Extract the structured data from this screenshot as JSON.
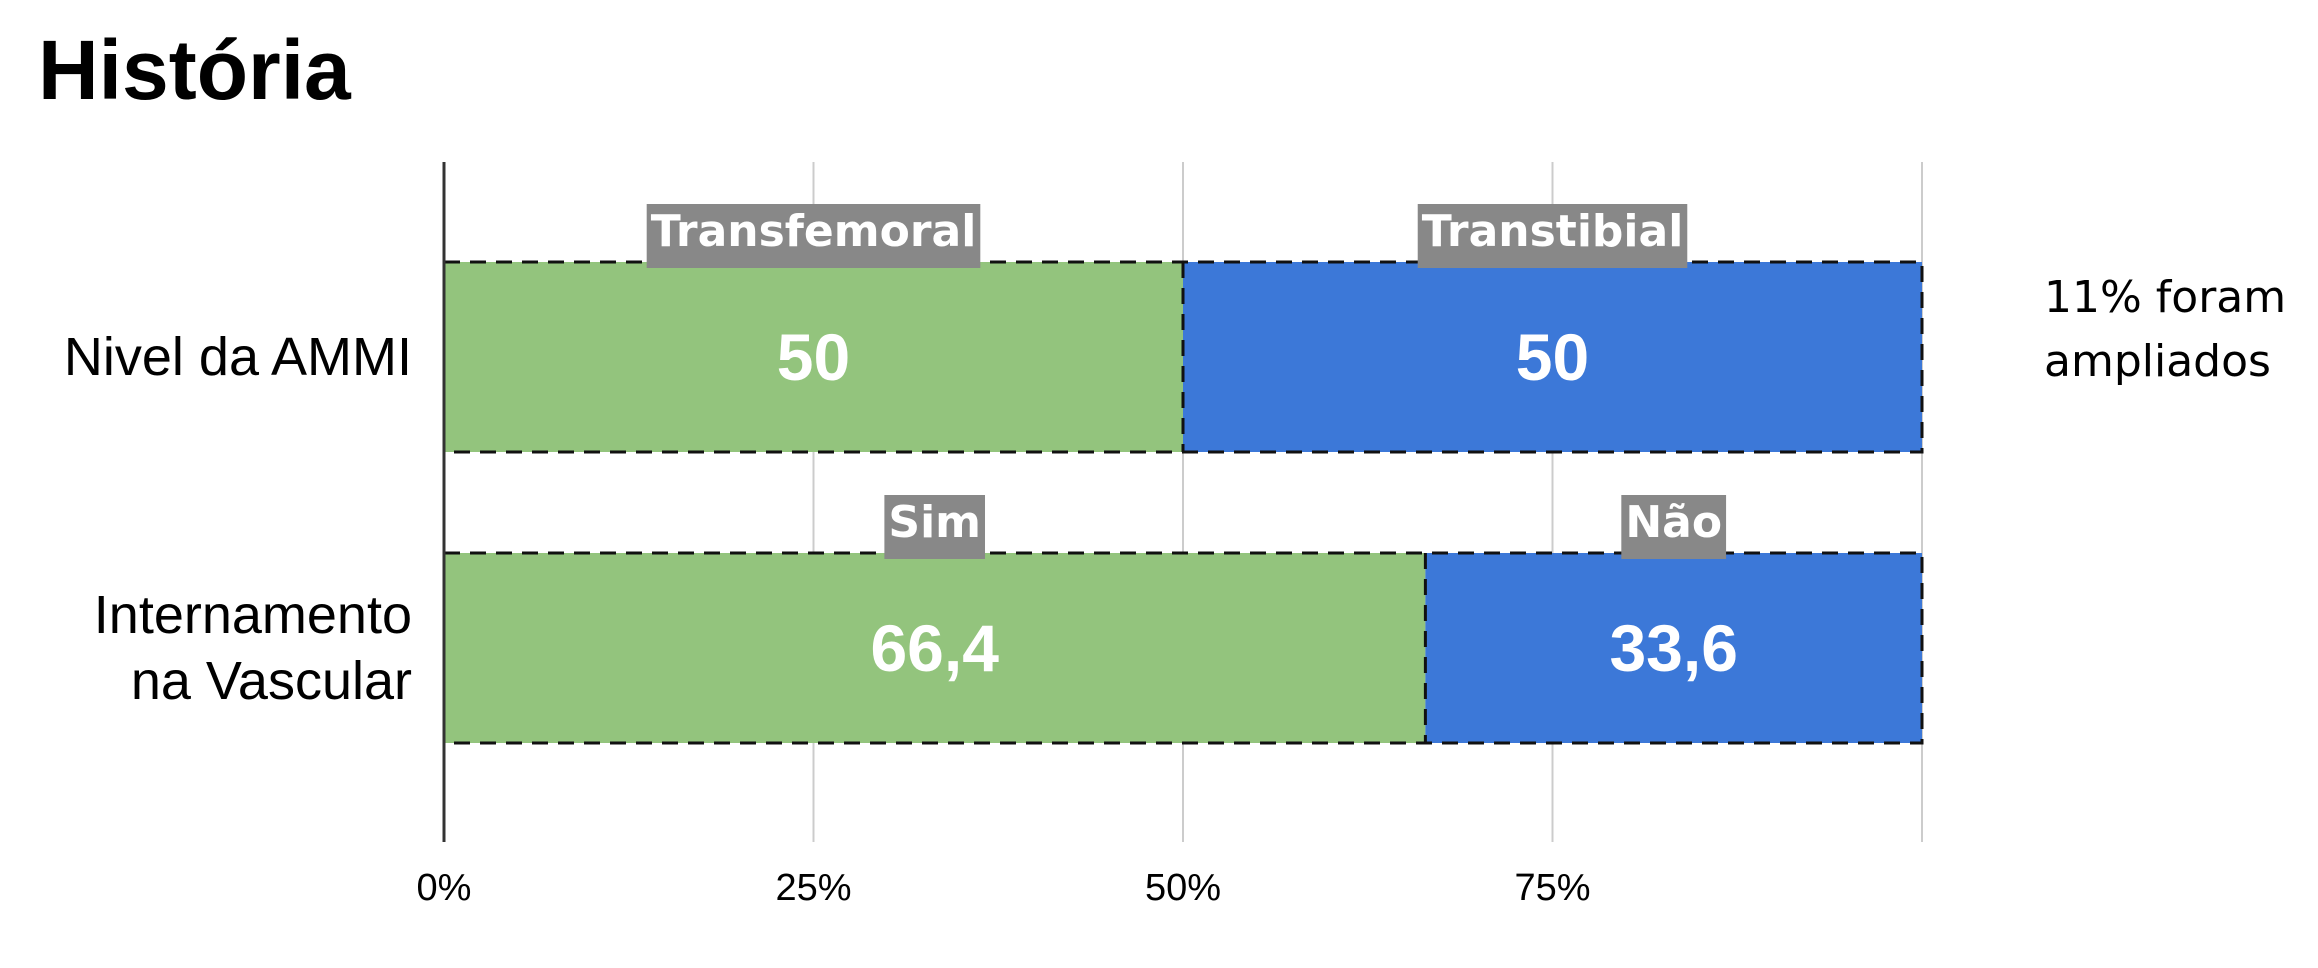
{
  "title": "História",
  "side_note": {
    "line1": "11% foram",
    "line2": "ampliados"
  },
  "colors": {
    "green": "#93c47d",
    "blue": "#3c78d8",
    "tag_bg": "#888888",
    "grid": "#cccccc",
    "axis": "#333333"
  },
  "chart_data": {
    "type": "bar",
    "orientation": "horizontal",
    "stacked": true,
    "title": "História",
    "categories": [
      "Nivel da AMMI",
      "Internamento na Vascular"
    ],
    "category_lines": [
      [
        "Nivel da AMMI"
      ],
      [
        "Internamento",
        "na Vascular"
      ]
    ],
    "segments": [
      [
        {
          "label": "Transfemoral",
          "value": 50,
          "value_text": "50",
          "color": "#93c47d"
        },
        {
          "label": "Transtibial",
          "value": 50,
          "value_text": "50",
          "color": "#3c78d8"
        }
      ],
      [
        {
          "label": "Sim",
          "value": 66.4,
          "value_text": "66,4",
          "color": "#93c47d"
        },
        {
          "label": "Não",
          "value": 33.6,
          "value_text": "33,6",
          "color": "#3c78d8"
        }
      ]
    ],
    "xlim": [
      0,
      100
    ],
    "xticks": [
      0,
      25,
      50,
      75,
      100
    ],
    "xtick_labels": [
      "0%",
      "25%",
      "50%",
      "75%",
      ""
    ],
    "grid": true,
    "legend": "none"
  }
}
